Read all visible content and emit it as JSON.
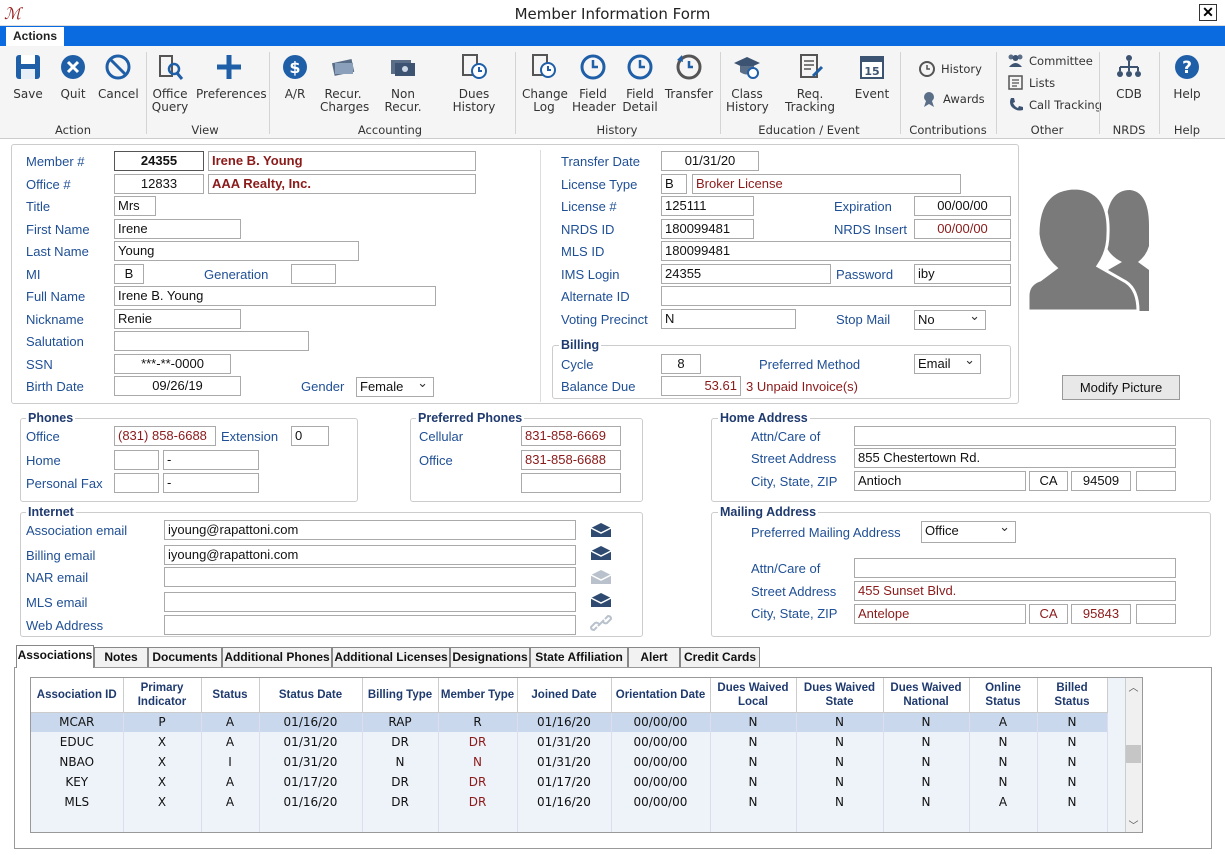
{
  "window": {
    "title": "Member Information Form",
    "close": "✕"
  },
  "menu": {
    "actions_tab": "Actions"
  },
  "ribbon": {
    "groups": {
      "action": "Action",
      "view": "View",
      "accounting": "Accounting",
      "history": "History",
      "education": "Education / Event",
      "contributions": "Contributions",
      "other": "Other",
      "nrds": "NRDS",
      "help": "Help"
    },
    "save": "Save",
    "quit": "Quit",
    "cancel": "Cancel",
    "office_query_1": "Office",
    "office_query_2": "Query",
    "preferences": "Preferences",
    "ar": "A/R",
    "recur_1": "Recur.",
    "recur_2": "Charges",
    "nonrecur": "Non Recur.",
    "dues_history": "Dues History",
    "change_log_1": "Change",
    "change_log_2": "Log",
    "field_header_1": "Field",
    "field_header_2": "Header",
    "field_detail_1": "Field",
    "field_detail_2": "Detail",
    "transfer": "Transfer",
    "class_history_1": "Class",
    "class_history_2": "History",
    "req_tracking": "Req. Tracking",
    "event": "Event",
    "history": "History",
    "awards": "Awards",
    "committee": "Committee",
    "lists": "Lists",
    "call_tracking": "Call Tracking",
    "cdb": "CDB",
    "help": "Help"
  },
  "member": {
    "member_no_label": "Member #",
    "member_no": "24355",
    "member_name": "Irene B. Young",
    "office_no_label": "Office #",
    "office_no": "12833",
    "office_name": "AAA Realty, Inc.",
    "title_label": "Title",
    "title": "Mrs",
    "first_name_label": "First  Name",
    "first_name": "Irene",
    "last_name_label": "Last Name",
    "last_name": "Young",
    "mi_label": "MI",
    "mi": "B",
    "generation_label": "Generation",
    "generation": "",
    "full_name_label": "Full Name",
    "full_name": "Irene B. Young",
    "nickname_label": "Nickname",
    "nickname": "Renie",
    "salutation_label": "Salutation",
    "salutation": "",
    "ssn_label": "SSN",
    "ssn": "***-**-0000",
    "birth_date_label": "Birth Date",
    "birth_date": "09/26/19",
    "gender_label": "Gender",
    "gender": "Female"
  },
  "license": {
    "transfer_date_label": "Transfer Date",
    "transfer_date": "01/31/20",
    "license_type_label": "License Type",
    "license_type": "B",
    "license_type_desc": "Broker License",
    "license_no_label": "License #",
    "license_no": "125111",
    "expiration_label": "Expiration",
    "expiration": "00/00/00",
    "nrds_id_label": "NRDS ID",
    "nrds_id": "180099481",
    "nrds_insert_label": "NRDS Insert",
    "nrds_insert": "00/00/00",
    "mls_id_label": "MLS ID",
    "mls_id": "180099481",
    "ims_login_label": "IMS Login",
    "ims_login": "24355",
    "password_label": "Password",
    "password": "iby",
    "alternate_id_label": "Alternate ID",
    "alternate_id": "",
    "voting_precinct_label": "Voting Precinct",
    "voting_precinct": "N",
    "stop_mail_label": "Stop Mail",
    "stop_mail": "No"
  },
  "billing": {
    "title": "Billing",
    "cycle_label": "Cycle",
    "cycle": "8",
    "preferred_method_label": "Preferred Method",
    "preferred_method": "Email",
    "balance_due_label": "Balance Due",
    "balance_due": "53.61",
    "unpaid": "3 Unpaid Invoice(s)"
  },
  "picture": {
    "modify_button": "Modify Picture"
  },
  "phones": {
    "title": "Phones",
    "office_label": "Office",
    "office": "(831) 858-6688",
    "extension_label": "Extension",
    "extension": "0",
    "home_label": "Home",
    "home_area": "",
    "home": "-",
    "fax_label": "Personal Fax",
    "fax_area": "",
    "fax": "-"
  },
  "preferred_phones": {
    "title": "Preferred Phones",
    "cellular_label": "Cellular",
    "cellular": "831-858-6669",
    "office_label": "Office",
    "office": "831-858-6688",
    "extra": ""
  },
  "home_address": {
    "title": "Home Address",
    "attn_label": "Attn/Care of",
    "attn": "",
    "street_label": "Street Address",
    "street": "855 Chestertown Rd.",
    "csz_label": "City, State, ZIP",
    "city": "Antioch",
    "state": "CA",
    "zip": "94509",
    "zip4": ""
  },
  "internet": {
    "title": "Internet",
    "assoc_email_label": "Association email",
    "assoc_email": "iyoung@rapattoni.com",
    "billing_email_label": "Billing email",
    "billing_email": "iyoung@rapattoni.com",
    "nar_email_label": "NAR email",
    "nar_email": "",
    "mls_email_label": "MLS email",
    "mls_email": "",
    "web_label": "Web Address",
    "web": ""
  },
  "mailing_address": {
    "title": "Mailing Address",
    "preferred_label": "Preferred Mailing Address",
    "preferred": "Office",
    "attn_label": "Attn/Care of",
    "attn": "",
    "street_label": "Street Address",
    "street": "455 Sunset Blvd.",
    "csz_label": "City, State, ZIP",
    "city": "Antelope",
    "state": "CA",
    "zip": "95843",
    "zip4": ""
  },
  "tabs": [
    "Associations",
    "Notes",
    "Documents",
    "Additional Phones",
    "Additional Licenses",
    "Designations",
    "State Affiliation",
    "Alert",
    "Credit Cards"
  ],
  "associations": {
    "columns": [
      "Association ID",
      "Primary Indicator",
      "Status",
      "Status Date",
      "Billing Type",
      "Member Type",
      "Joined Date",
      "Orientation Date",
      "Dues Waived Local",
      "Dues Waived State",
      "Dues Waived National",
      "Online Status",
      "Billed Status"
    ],
    "rows": [
      [
        "MCAR",
        "P",
        "A",
        "01/16/20",
        "RAP",
        "R",
        "01/16/20",
        "00/00/00",
        "N",
        "N",
        "N",
        "A",
        "N"
      ],
      [
        "EDUC",
        "X",
        "A",
        "01/31/20",
        "DR",
        "DR",
        "01/31/20",
        "00/00/00",
        "N",
        "N",
        "N",
        "N",
        "N"
      ],
      [
        "NBAO",
        "X",
        "I",
        "01/31/20",
        "N",
        "N",
        "01/31/20",
        "00/00/00",
        "N",
        "N",
        "N",
        "N",
        "N"
      ],
      [
        "KEY",
        "X",
        "A",
        "01/17/20",
        "DR",
        "DR",
        "01/17/20",
        "00/00/00",
        "N",
        "N",
        "N",
        "N",
        "N"
      ],
      [
        "MLS",
        "X",
        "A",
        "01/16/20",
        "DR",
        "DR",
        "01/16/20",
        "00/00/00",
        "N",
        "N",
        "N",
        "A",
        "N"
      ]
    ]
  },
  "colors": {
    "tabbar": "#0a6be0",
    "accent_text": "#1f4f95",
    "value_red": "#8b1a1a",
    "selected_row": "#c9d8ed"
  }
}
